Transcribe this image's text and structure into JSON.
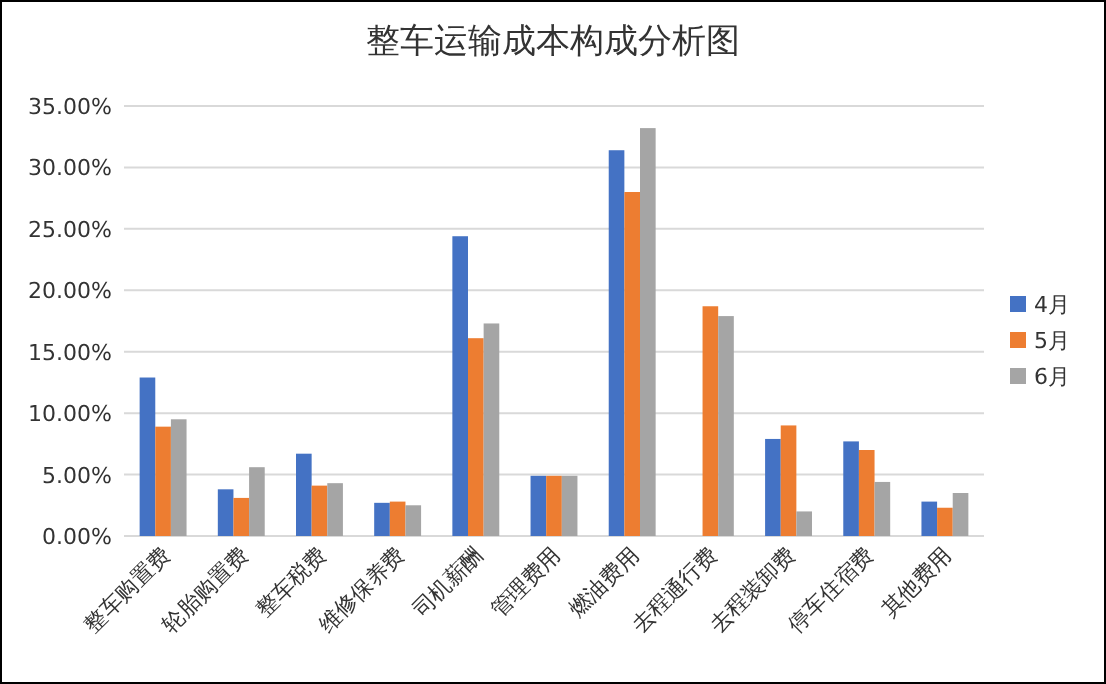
{
  "chart_data": {
    "type": "bar",
    "title": "整车运输成本构成分析图",
    "categories": [
      "整车购置费",
      "轮胎购置费",
      "整车税费",
      "维修保养费",
      "司机薪酬",
      "管理费用",
      "燃油费用",
      "去程通行费",
      "去程装卸费",
      "停车住宿费",
      "其他费用"
    ],
    "series": [
      {
        "name": "4月",
        "color": "#4472c4",
        "values": [
          12.9,
          3.8,
          6.7,
          2.7,
          24.4,
          4.9,
          31.4,
          null,
          7.9,
          7.7,
          2.8
        ]
      },
      {
        "name": "5月",
        "color": "#ed7d31",
        "values": [
          8.9,
          3.1,
          4.1,
          2.8,
          16.1,
          4.9,
          28.0,
          18.7,
          9.0,
          7.0,
          2.3
        ]
      },
      {
        "name": "6月",
        "color": "#a5a5a5",
        "values": [
          9.5,
          5.6,
          4.3,
          2.5,
          17.3,
          4.9,
          33.2,
          17.9,
          2.0,
          4.4,
          3.5
        ]
      }
    ],
    "ylim": [
      0,
      35
    ],
    "yticks": [
      {
        "value": 0,
        "label": "0.00%"
      },
      {
        "value": 5,
        "label": "5.00%"
      },
      {
        "value": 10,
        "label": "10.00%"
      },
      {
        "value": 15,
        "label": "15.00%"
      },
      {
        "value": 20,
        "label": "20.00%"
      },
      {
        "value": 25,
        "label": "25.00%"
      },
      {
        "value": 30,
        "label": "30.00%"
      },
      {
        "value": 35,
        "label": "35.00%"
      }
    ],
    "grid": "y",
    "legend": "right"
  }
}
